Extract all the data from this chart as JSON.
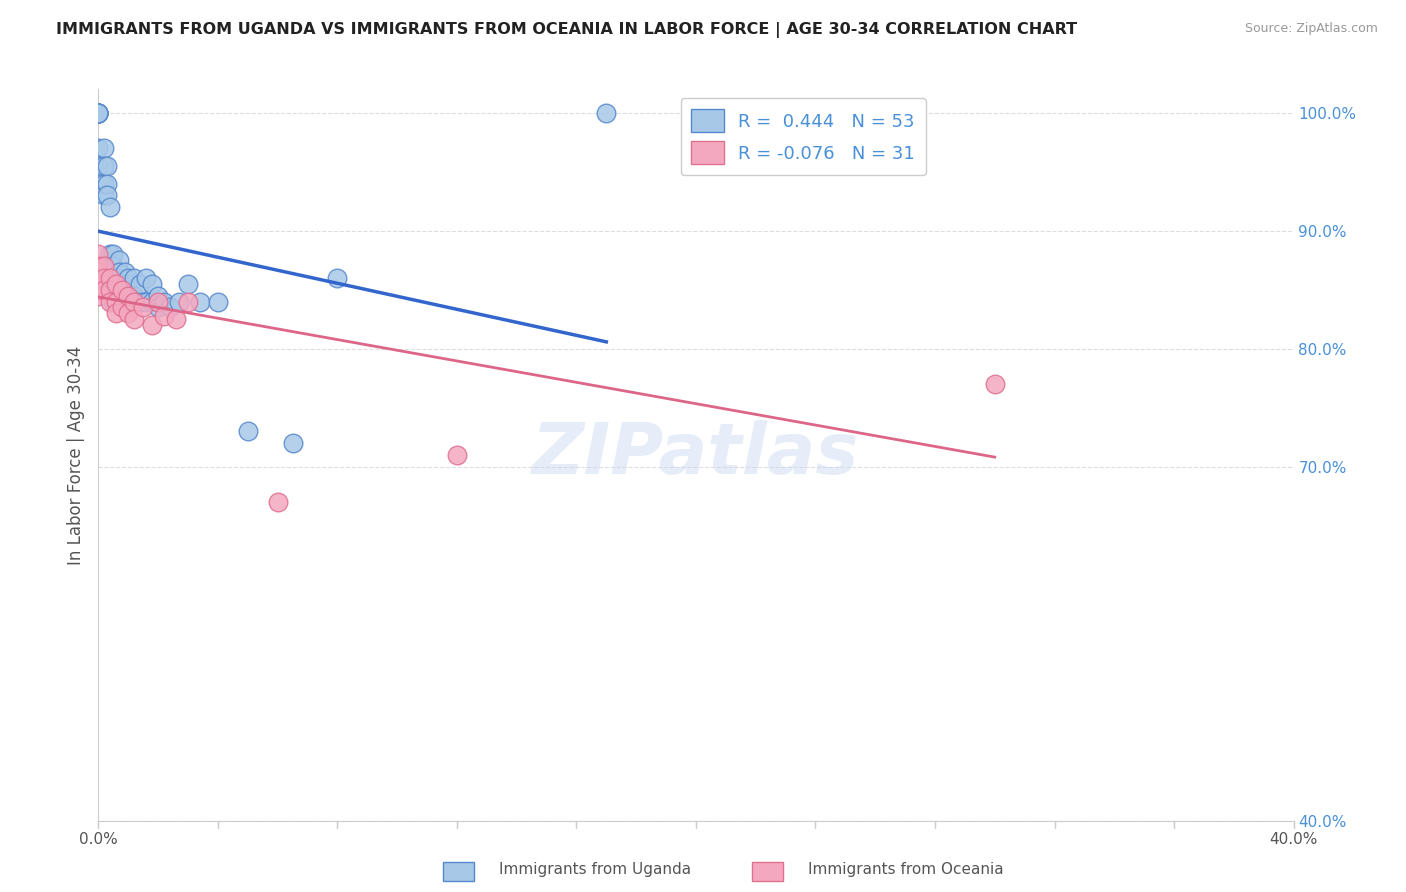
{
  "title": "IMMIGRANTS FROM UGANDA VS IMMIGRANTS FROM OCEANIA IN LABOR FORCE | AGE 30-34 CORRELATION CHART",
  "source": "Source: ZipAtlas.com",
  "ylabel": "In Labor Force | Age 30-34",
  "xlim": [
    0.0,
    0.4
  ],
  "ylim": [
    0.4,
    1.02
  ],
  "yticks_right": [
    0.4,
    0.7,
    0.8,
    0.9,
    1.0
  ],
  "grid_color": "#dddddd",
  "background_color": "#ffffff",
  "uganda_color": "#a8c8e8",
  "oceania_color": "#f4a8c0",
  "uganda_edge_color": "#5588cc",
  "oceania_edge_color": "#e07090",
  "uganda_line_color": "#3366cc",
  "oceania_line_color": "#dd6688",
  "watermark": "ZIPatlas",
  "R_uganda": 0.444,
  "N_uganda": 53,
  "R_oceania": -0.076,
  "N_oceania": 31,
  "uganda_x": [
    0.0,
    0.0,
    0.0,
    0.0,
    0.0,
    0.0,
    0.0,
    0.0,
    0.0,
    0.0,
    0.002,
    0.002,
    0.002,
    0.002,
    0.003,
    0.003,
    0.003,
    0.004,
    0.004,
    0.004,
    0.004,
    0.005,
    0.005,
    0.005,
    0.005,
    0.007,
    0.007,
    0.007,
    0.009,
    0.009,
    0.01,
    0.01,
    0.01,
    0.012,
    0.012,
    0.014,
    0.014,
    0.016,
    0.016,
    0.018,
    0.018,
    0.02,
    0.02,
    0.022,
    0.024,
    0.027,
    0.03,
    0.034,
    0.04,
    0.05,
    0.065,
    0.08,
    0.17
  ],
  "uganda_y": [
    1.0,
    1.0,
    1.0,
    1.0,
    1.0,
    1.0,
    1.0,
    1.0,
    0.97,
    0.955,
    0.97,
    0.955,
    0.94,
    0.93,
    0.955,
    0.94,
    0.93,
    0.92,
    0.88,
    0.87,
    0.86,
    0.88,
    0.87,
    0.86,
    0.84,
    0.875,
    0.865,
    0.855,
    0.865,
    0.855,
    0.86,
    0.85,
    0.84,
    0.86,
    0.845,
    0.855,
    0.84,
    0.86,
    0.84,
    0.855,
    0.84,
    0.845,
    0.835,
    0.84,
    0.835,
    0.84,
    0.855,
    0.84,
    0.84,
    0.73,
    0.72,
    0.86,
    1.0
  ],
  "oceania_x": [
    0.0,
    0.0,
    0.0,
    0.0,
    0.0,
    0.0,
    0.0,
    0.002,
    0.002,
    0.002,
    0.004,
    0.004,
    0.004,
    0.006,
    0.006,
    0.006,
    0.008,
    0.008,
    0.01,
    0.01,
    0.012,
    0.012,
    0.015,
    0.018,
    0.02,
    0.022,
    0.026,
    0.03,
    0.06,
    0.12,
    0.3
  ],
  "oceania_y": [
    0.88,
    0.87,
    0.865,
    0.86,
    0.855,
    0.85,
    0.845,
    0.87,
    0.86,
    0.85,
    0.86,
    0.85,
    0.84,
    0.855,
    0.84,
    0.83,
    0.85,
    0.835,
    0.845,
    0.83,
    0.84,
    0.825,
    0.835,
    0.82,
    0.84,
    0.828,
    0.825,
    0.84,
    0.67,
    0.71,
    0.77
  ]
}
